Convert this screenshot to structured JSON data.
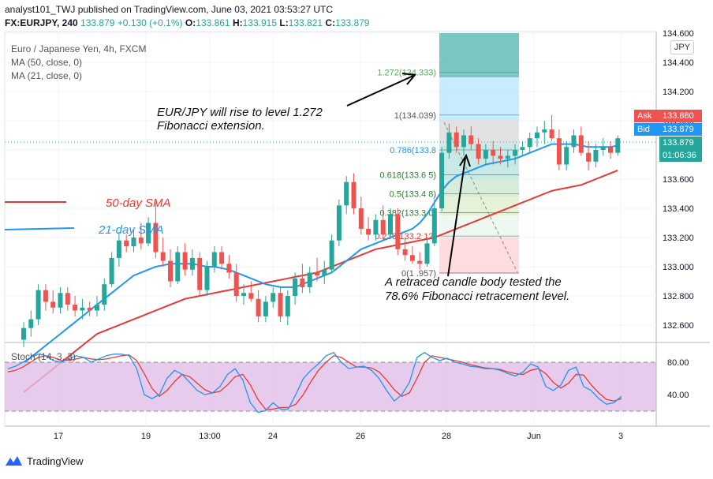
{
  "header": {
    "publisher_line": "analyst101_TWJ published on TradingView.com, June 03, 2021 03:53:27 UTC",
    "symbol": "FX:EURJPY, 240",
    "last": "133.879",
    "change": "+0.130 (+0.1%)",
    "o_label": "O:",
    "o_value": "133.861",
    "h_label": "H:",
    "h_value": "133.915",
    "l_label": "L:",
    "l_value": "133.821",
    "c_label": "C:",
    "c_value": "133.879"
  },
  "legend": {
    "title": "Euro / Japanese Yen, 4h, FXCM",
    "ma50": "MA (50, close, 0)",
    "ma21": "MA (21, close, 0)"
  },
  "currency_badge": "JPY",
  "price_tags": {
    "ask_label": "Ask",
    "ask_value": "133.880",
    "bid_label": "Bid",
    "bid_value": "133.879",
    "last_value": "133.879",
    "countdown": "01:06:36"
  },
  "annotations": {
    "extension_note_line1": "EUR/JPY will rise to level 1.272",
    "extension_note_line2": "Fibonacci extension.",
    "sma50_label": "50-day SMA",
    "sma21_label": "21-day SMA",
    "retrace_note_line1": "A retraced candle body tested the",
    "retrace_note_line2": "78.6% Fibonacci retracement level."
  },
  "stoch_title": "Stoch (14, 3, 3)",
  "footer_brand": "TradingView",
  "colors": {
    "up": "#26a69a",
    "down": "#ef5350",
    "sma50": "#e53935",
    "sma21": "#2196f3",
    "stoch_k": "#2196f3",
    "stoch_d": "#e53935",
    "stoch_band": "#e1bee7",
    "ask": "#ef5350",
    "bid": "#2196f3"
  },
  "chart_data": [
    {
      "type": "candlestick",
      "symbol": "EUR/JPY",
      "timeframe": "4h",
      "x_tick_labels": [
        "17",
        "19",
        "13:00",
        "24",
        "26",
        "28",
        "Jun",
        "3"
      ],
      "y_tick_labels": [
        "132.600",
        "132.800",
        "133.000",
        "133.200",
        "133.400",
        "133.600",
        "133.800",
        "134.000",
        "134.200",
        "134.400",
        "134.600"
      ],
      "ylim": [
        132.45,
        134.65
      ],
      "candles": [
        [
          132.5,
          132.62,
          132.45,
          132.58
        ],
        [
          132.58,
          132.7,
          132.52,
          132.64
        ],
        [
          132.64,
          132.88,
          132.6,
          132.84
        ],
        [
          132.84,
          132.88,
          132.7,
          132.76
        ],
        [
          132.76,
          132.84,
          132.68,
          132.72
        ],
        [
          132.72,
          132.86,
          132.68,
          132.82
        ],
        [
          132.82,
          132.86,
          132.7,
          132.74
        ],
        [
          132.74,
          132.8,
          132.66,
          132.7
        ],
        [
          132.7,
          132.78,
          132.64,
          132.72
        ],
        [
          132.72,
          132.76,
          132.66,
          132.7
        ],
        [
          132.7,
          132.8,
          132.66,
          132.74
        ],
        [
          132.74,
          132.92,
          132.7,
          132.88
        ],
        [
          132.88,
          133.1,
          132.86,
          133.06
        ],
        [
          133.06,
          133.24,
          133.0,
          133.18
        ],
        [
          133.18,
          133.22,
          133.1,
          133.14
        ],
        [
          133.14,
          133.26,
          133.1,
          133.2
        ],
        [
          133.2,
          133.3,
          133.12,
          133.16
        ],
        [
          133.16,
          133.34,
          133.14,
          133.3
        ],
        [
          133.3,
          133.44,
          133.06,
          133.1
        ],
        [
          133.1,
          133.2,
          133.0,
          133.04
        ],
        [
          133.04,
          133.12,
          132.86,
          132.9
        ],
        [
          132.9,
          133.14,
          132.88,
          133.1
        ],
        [
          133.1,
          133.16,
          132.94,
          132.98
        ],
        [
          132.98,
          133.12,
          132.94,
          133.06
        ],
        [
          133.06,
          133.1,
          132.8,
          132.84
        ],
        [
          132.84,
          133.04,
          132.8,
          133.0
        ],
        [
          133.0,
          133.14,
          132.96,
          133.1
        ],
        [
          133.1,
          133.14,
          132.98,
          133.02
        ],
        [
          133.02,
          133.08,
          132.92,
          132.96
        ],
        [
          132.96,
          133.02,
          132.76,
          132.8
        ],
        [
          132.8,
          132.88,
          132.74,
          132.82
        ],
        [
          132.82,
          132.9,
          132.76,
          132.78
        ],
        [
          132.78,
          132.84,
          132.62,
          132.66
        ],
        [
          132.66,
          132.8,
          132.62,
          132.76
        ],
        [
          132.76,
          132.86,
          132.72,
          132.82
        ],
        [
          132.82,
          132.86,
          132.62,
          132.66
        ],
        [
          132.66,
          132.84,
          132.6,
          132.8
        ],
        [
          132.8,
          132.96,
          132.74,
          132.92
        ],
        [
          132.92,
          133.02,
          132.82,
          132.86
        ],
        [
          132.86,
          133.0,
          132.82,
          132.96
        ],
        [
          132.96,
          133.06,
          132.9,
          132.94
        ],
        [
          132.94,
          133.04,
          132.88,
          132.98
        ],
        [
          132.98,
          133.22,
          132.96,
          133.18
        ],
        [
          133.18,
          133.46,
          133.14,
          133.42
        ],
        [
          133.42,
          133.62,
          133.36,
          133.58
        ],
        [
          133.58,
          133.64,
          133.36,
          133.4
        ],
        [
          133.4,
          133.48,
          133.22,
          133.26
        ],
        [
          133.26,
          133.34,
          133.18,
          133.22
        ],
        [
          133.22,
          133.36,
          133.18,
          133.32
        ],
        [
          133.32,
          133.42,
          133.18,
          133.22
        ],
        [
          133.22,
          133.4,
          133.2,
          133.36
        ],
        [
          133.36,
          133.4,
          133.08,
          133.12
        ],
        [
          133.12,
          133.2,
          133.04,
          133.08
        ],
        [
          133.08,
          133.14,
          133.02,
          133.04
        ],
        [
          133.04,
          133.1,
          132.98,
          133.02
        ],
        [
          133.02,
          133.2,
          133.0,
          133.16
        ],
        [
          133.16,
          133.46,
          133.14,
          133.4
        ],
        [
          133.4,
          133.82,
          133.38,
          133.78
        ],
        [
          133.78,
          133.98,
          133.74,
          133.92
        ],
        [
          133.92,
          133.96,
          133.78,
          133.82
        ],
        [
          133.82,
          133.94,
          133.76,
          133.9
        ],
        [
          133.9,
          133.96,
          133.8,
          133.84
        ],
        [
          133.84,
          133.88,
          133.7,
          133.74
        ],
        [
          133.74,
          133.84,
          133.7,
          133.8
        ],
        [
          133.8,
          133.86,
          133.7,
          133.76
        ],
        [
          133.76,
          133.82,
          133.7,
          133.74
        ],
        [
          133.74,
          133.8,
          133.68,
          133.76
        ],
        [
          133.76,
          133.84,
          133.7,
          133.8
        ],
        [
          133.8,
          133.86,
          133.76,
          133.82
        ],
        [
          133.82,
          133.92,
          133.78,
          133.88
        ],
        [
          133.88,
          133.96,
          133.82,
          133.92
        ],
        [
          133.92,
          134.0,
          133.84,
          133.94
        ],
        [
          133.94,
          134.04,
          133.86,
          133.88
        ],
        [
          133.88,
          133.94,
          133.66,
          133.7
        ],
        [
          133.7,
          133.86,
          133.66,
          133.82
        ],
        [
          133.82,
          133.94,
          133.78,
          133.9
        ],
        [
          133.9,
          133.96,
          133.76,
          133.78
        ],
        [
          133.78,
          133.86,
          133.66,
          133.72
        ],
        [
          133.72,
          133.84,
          133.68,
          133.8
        ],
        [
          133.8,
          133.88,
          133.76,
          133.82
        ],
        [
          133.82,
          133.86,
          133.74,
          133.78
        ],
        [
          133.78,
          133.9,
          133.76,
          133.88
        ]
      ]
    },
    {
      "type": "line",
      "name": "MA (50, close, 0)",
      "values": [
        132.14,
        132.18,
        132.22,
        132.26,
        132.3,
        132.34,
        132.38,
        132.42,
        132.46,
        132.5,
        132.54,
        132.56,
        132.58,
        132.6,
        132.62,
        132.64,
        132.66,
        132.68,
        132.7,
        132.72,
        132.74,
        132.76,
        132.78,
        132.79,
        132.8,
        132.81,
        132.82,
        132.83,
        132.84,
        132.85,
        132.86,
        132.87,
        132.88,
        132.89,
        132.9,
        132.91,
        132.92,
        132.93,
        132.94,
        132.95,
        132.96,
        132.98,
        133.0,
        133.02,
        133.04,
        133.06,
        133.08,
        133.1,
        133.12,
        133.13,
        133.14,
        133.15,
        133.16,
        133.17,
        133.18,
        133.19,
        133.2,
        133.22,
        133.24,
        133.26,
        133.28,
        133.3,
        133.32,
        133.34,
        133.36,
        133.38,
        133.4,
        133.42,
        133.44,
        133.46,
        133.48,
        133.5,
        133.52,
        133.53,
        133.54,
        133.55,
        133.56,
        133.58,
        133.6,
        133.62,
        133.64,
        133.66
      ]
    },
    {
      "type": "line",
      "name": "MA (21, close, 0)",
      "values": [
        132.34,
        132.38,
        132.42,
        132.46,
        132.5,
        132.54,
        132.58,
        132.62,
        132.66,
        132.7,
        132.74,
        132.78,
        132.82,
        132.86,
        132.9,
        132.94,
        132.96,
        132.98,
        133.0,
        133.01,
        133.02,
        133.02,
        133.02,
        133.02,
        133.01,
        133.0,
        133.0,
        132.99,
        132.98,
        132.96,
        132.94,
        132.92,
        132.9,
        132.88,
        132.87,
        132.86,
        132.86,
        132.86,
        132.88,
        132.9,
        132.92,
        132.94,
        132.96,
        133.0,
        133.04,
        133.08,
        133.12,
        133.14,
        133.16,
        133.18,
        133.2,
        133.22,
        133.24,
        133.26,
        133.3,
        133.36,
        133.44,
        133.52,
        133.58,
        133.62,
        133.64,
        133.66,
        133.68,
        133.7,
        133.71,
        133.72,
        133.73,
        133.74,
        133.76,
        133.78,
        133.8,
        133.82,
        133.84,
        133.84,
        133.84,
        133.84,
        133.83,
        133.82,
        133.82,
        133.82,
        133.82,
        133.83
      ]
    },
    {
      "type": "fibonacci",
      "levels": [
        {
          "label": "1.272(134.333)",
          "ratio": 1.272,
          "price": 134.333
        },
        {
          "label": "1(134.039)",
          "ratio": 1,
          "price": 134.039
        },
        {
          "label": "0.786(133.8",
          "ratio": 0.786,
          "price": 133.8
        },
        {
          "label": "0.618(133.6 5)",
          "ratio": 0.618,
          "price": 133.63
        },
        {
          "label": "0.5(133.4 8)",
          "ratio": 0.5,
          "price": 133.5
        },
        {
          "label": "0.382(133.3 0)",
          "ratio": 0.382,
          "price": 133.37
        },
        {
          "label": "0.236(133.2 12)",
          "ratio": 0.236,
          "price": 133.21
        },
        {
          "label": "0(1 .957)",
          "ratio": 0,
          "price": 132.957
        }
      ]
    },
    {
      "type": "line",
      "name": "Stoch (14, 3, 3)",
      "ylim": [
        0,
        100
      ],
      "y_tick_labels": [
        "80.00",
        "40.00"
      ],
      "bands": [
        20,
        80
      ],
      "k": [
        72,
        75,
        80,
        86,
        90,
        88,
        82,
        80,
        84,
        88,
        86,
        80,
        84,
        88,
        90,
        90,
        88,
        72,
        40,
        35,
        40,
        60,
        70,
        65,
        55,
        45,
        40,
        42,
        50,
        65,
        72,
        58,
        30,
        18,
        20,
        30,
        22,
        22,
        40,
        60,
        70,
        78,
        88,
        92,
        80,
        72,
        74,
        75,
        70,
        60,
        45,
        32,
        40,
        55,
        86,
        92,
        86,
        82,
        85,
        80,
        78,
        75,
        74,
        72,
        72,
        70,
        66,
        63,
        68,
        78,
        74,
        50,
        45,
        52,
        70,
        74,
        50,
        45,
        35,
        28,
        30,
        38
      ],
      "d": [
        68,
        70,
        74,
        80,
        86,
        88,
        86,
        82,
        82,
        84,
        86,
        84,
        83,
        84,
        86,
        88,
        89,
        82,
        66,
        48,
        38,
        45,
        56,
        65,
        62,
        54,
        46,
        42,
        44,
        52,
        62,
        65,
        52,
        34,
        22,
        22,
        24,
        24,
        28,
        40,
        56,
        70,
        80,
        88,
        86,
        80,
        74,
        74,
        73,
        68,
        58,
        46,
        38,
        42,
        60,
        80,
        88,
        86,
        84,
        82,
        80,
        77,
        75,
        73,
        72,
        71,
        68,
        66,
        65,
        70,
        72,
        66,
        55,
        48,
        54,
        65,
        64,
        52,
        42,
        34,
        32,
        35
      ]
    }
  ]
}
